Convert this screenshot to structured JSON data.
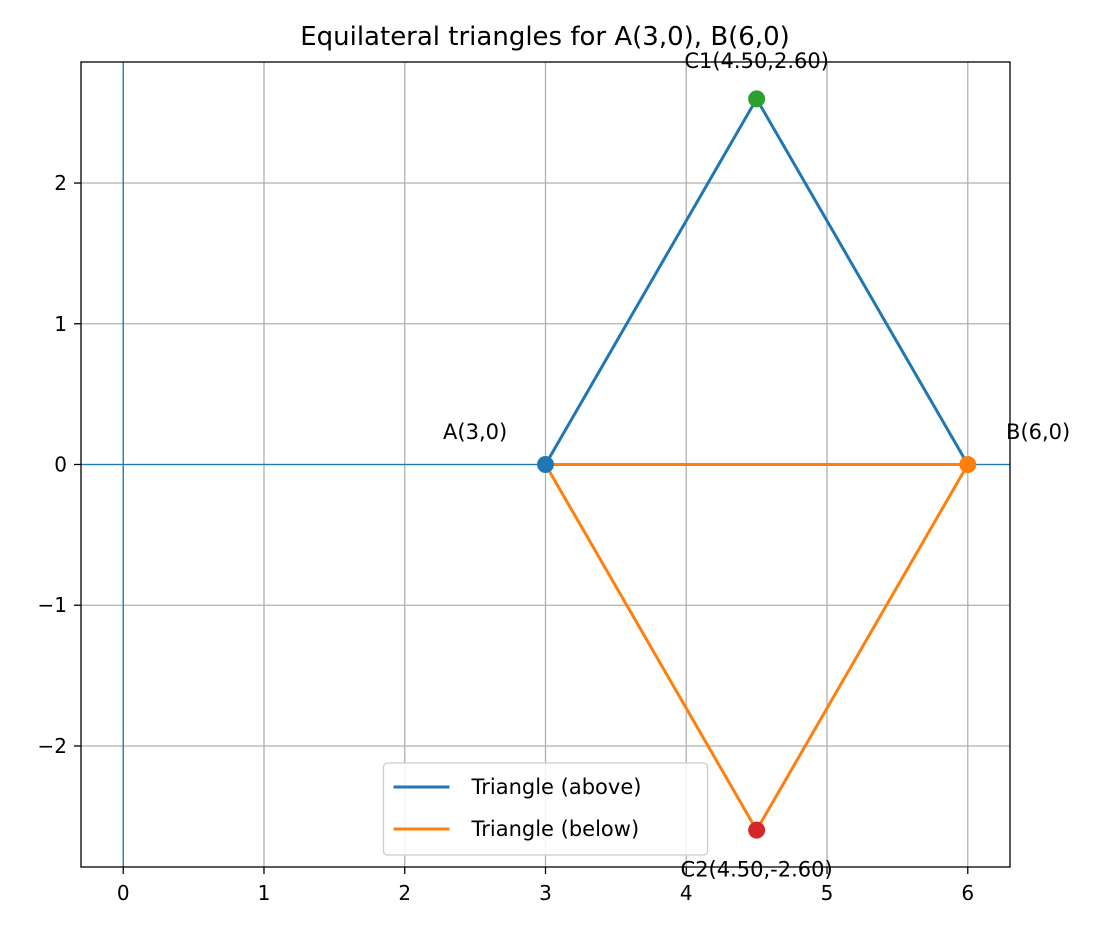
{
  "chart_data": {
    "type": "line",
    "title": "Equilateral triangles for A(3,0), B(6,0)",
    "xlabel": "",
    "ylabel": "",
    "xlim": [
      -0.3,
      6.3
    ],
    "ylim": [
      -2.86,
      2.86
    ],
    "x_ticks": [
      0,
      1,
      2,
      3,
      4,
      5,
      6
    ],
    "y_ticks": [
      -2,
      -1,
      0,
      1,
      2
    ],
    "x_tick_labels": [
      "0",
      "1",
      "2",
      "3",
      "4",
      "5",
      "6"
    ],
    "y_tick_labels": [
      "−2",
      "−1",
      "0",
      "1",
      "2"
    ],
    "grid": true,
    "legend_position": "lower center",
    "axis_lines": [
      {
        "orientation": "horizontal",
        "value": 0,
        "color": "#1f77b4"
      },
      {
        "orientation": "vertical",
        "value": 0,
        "color": "#1f77b4"
      }
    ],
    "series": [
      {
        "name": "Triangle (above)",
        "color": "#1f77b4",
        "x": [
          3,
          6,
          4.5,
          3
        ],
        "y": [
          0,
          0,
          2.598,
          0
        ]
      },
      {
        "name": "Triangle (below)",
        "color": "#ff7f0e",
        "x": [
          3,
          6,
          4.5,
          3
        ],
        "y": [
          0,
          0,
          -2.598,
          0
        ]
      }
    ],
    "points": [
      {
        "label": "A(3,0)",
        "x": 3,
        "y": 0,
        "color": "#1f77b4",
        "label_dx": -0.5,
        "label_dy": 0.18
      },
      {
        "label": "B(6,0)",
        "x": 6,
        "y": 0,
        "color": "#ff7f0e",
        "label_dx": 0.5,
        "label_dy": 0.18
      },
      {
        "label": "C1(4.50,2.60)",
        "x": 4.5,
        "y": 2.598,
        "color": "#2ca02c",
        "label_dx": 0,
        "label_dy": 0.22
      },
      {
        "label": "C2(4.50,-2.60)",
        "x": 4.5,
        "y": -2.598,
        "color": "#d62728",
        "label_dx": 0,
        "label_dy": -0.33
      }
    ]
  }
}
